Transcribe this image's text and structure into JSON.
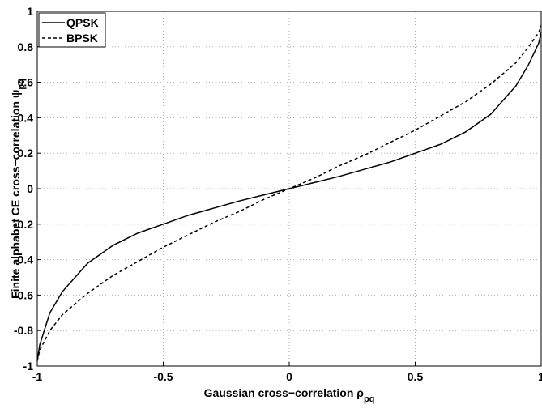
{
  "chart_data": {
    "type": "line",
    "x_label": {
      "text": "Gaussian cross−correlation ρ",
      "subscript": "pq"
    },
    "y_label": {
      "text": "Finite alphabet CE cross−correlation ψ",
      "subscript": "pq"
    },
    "x": [
      -1,
      -0.99,
      -0.95,
      -0.9,
      -0.8,
      -0.7,
      -0.6,
      -0.5,
      -0.4,
      -0.3,
      -0.2,
      -0.1,
      0,
      0.1,
      0.2,
      0.3,
      0.4,
      0.5,
      0.6,
      0.7,
      0.8,
      0.9,
      0.95,
      0.99,
      1
    ],
    "series": [
      {
        "name": "QPSK",
        "color": "#000000",
        "dash": "solid",
        "values": [
          -0.97,
          -0.88,
          -0.7,
          -0.58,
          -0.42,
          -0.32,
          -0.25,
          -0.2,
          -0.15,
          -0.11,
          -0.07,
          -0.035,
          0,
          0.035,
          0.07,
          0.11,
          0.15,
          0.2,
          0.25,
          0.32,
          0.42,
          0.58,
          0.7,
          0.82,
          0.88
        ]
      },
      {
        "name": "BPSK",
        "color": "#000000",
        "dash": "dashed",
        "values": [
          -0.97,
          -0.91,
          -0.8,
          -0.71,
          -0.59,
          -0.49,
          -0.41,
          -0.33,
          -0.26,
          -0.19,
          -0.13,
          -0.06,
          0,
          0.06,
          0.13,
          0.19,
          0.26,
          0.33,
          0.41,
          0.49,
          0.59,
          0.71,
          0.8,
          0.88,
          0.92
        ]
      }
    ],
    "xlim": [
      -1,
      1
    ],
    "xticks": [
      -1,
      -0.5,
      0,
      0.5,
      1
    ],
    "ylim": [
      -1,
      1
    ],
    "yticks": [
      -1,
      -0.8,
      -0.6,
      -0.4,
      -0.2,
      0,
      0.2,
      0.4,
      0.6,
      0.8,
      1
    ],
    "grid": true,
    "legend": "upper-left"
  }
}
